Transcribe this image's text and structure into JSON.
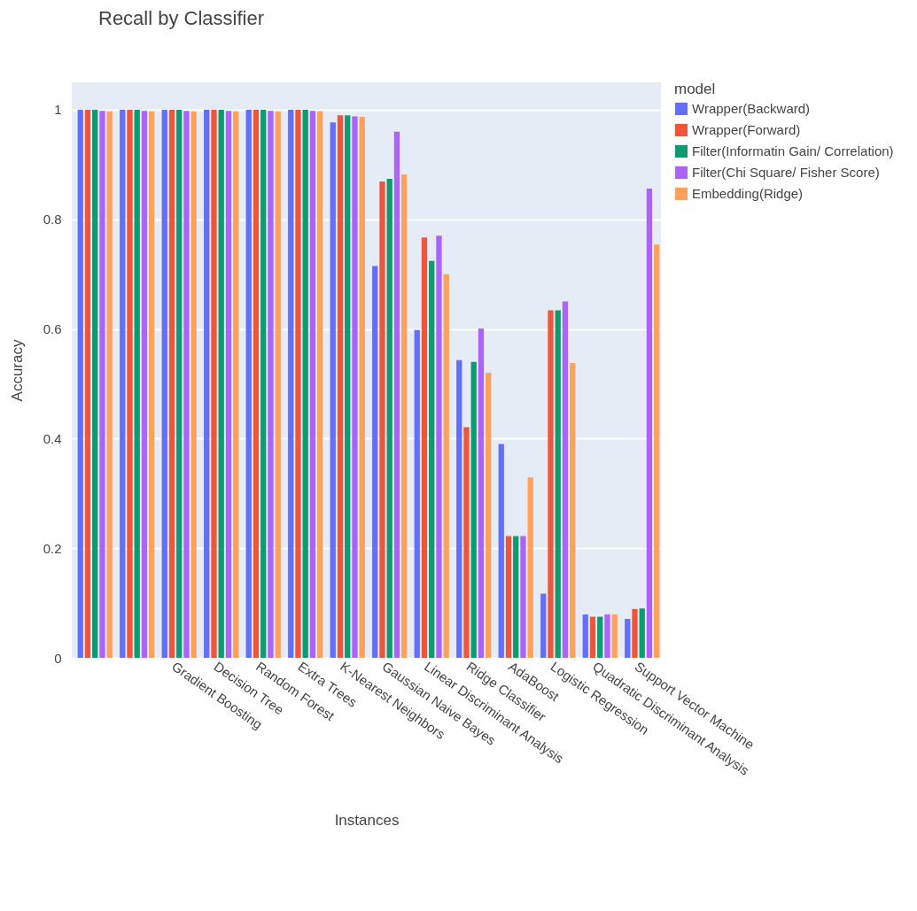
{
  "chart_data": {
    "type": "bar",
    "title": "Recall by Classifier",
    "xlabel": "Instances",
    "ylabel": "Accuracy",
    "legend_title": "model",
    "categories": [
      null,
      null,
      "Gradient Boosting",
      "Decision Tree",
      "Random Forest",
      "Extra Trees",
      "K-Nearest Neighbors",
      "Gaussian Naive Bayes",
      "Linear Discriminant Analysis",
      "Ridge Classifier",
      "AdaBoost",
      "Logistic Regression",
      "Quadratic Discriminant Analysis",
      "Support Vector Machine"
    ],
    "series": [
      {
        "name": "Wrapper(Backward)",
        "color": "#636efa",
        "values": [
          1,
          1,
          1,
          1,
          1,
          1,
          0.977,
          0.715,
          0.598,
          0.543,
          0.39,
          0.117,
          0.079,
          0.071
        ]
      },
      {
        "name": "Wrapper(Forward)",
        "color": "#ef553b",
        "values": [
          1,
          1,
          1,
          1,
          1,
          1,
          0.99,
          0.869,
          0.767,
          0.421,
          0.222,
          0.634,
          0.075,
          0.089
        ]
      },
      {
        "name": "Filter(Informatin Gain/ Correlation)",
        "color": "#0e9b6f",
        "values": [
          1,
          1,
          1,
          1,
          1,
          1,
          0.99,
          0.874,
          0.724,
          0.54,
          0.222,
          0.634,
          0.075,
          0.09
        ]
      },
      {
        "name": "Filter(Chi Square/ Fisher Score)",
        "color": "#ab63fa",
        "values": [
          0.998,
          0.998,
          0.998,
          0.998,
          0.998,
          0.998,
          0.988,
          0.96,
          0.77,
          0.601,
          0.222,
          0.65,
          0.079,
          0.856
        ]
      },
      {
        "name": "Embedding(Ridge)",
        "color": "#ffa15a",
        "values": [
          0.997,
          0.997,
          0.997,
          0.997,
          0.997,
          0.997,
          0.987,
          0.882,
          0.7,
          0.52,
          0.329,
          0.538,
          0.079,
          0.754
        ]
      }
    ],
    "ylim": [
      0,
      1.05
    ],
    "yticks": [
      0,
      0.2,
      0.4,
      0.6,
      0.8,
      1
    ],
    "grid": "y",
    "legend": "top right"
  }
}
